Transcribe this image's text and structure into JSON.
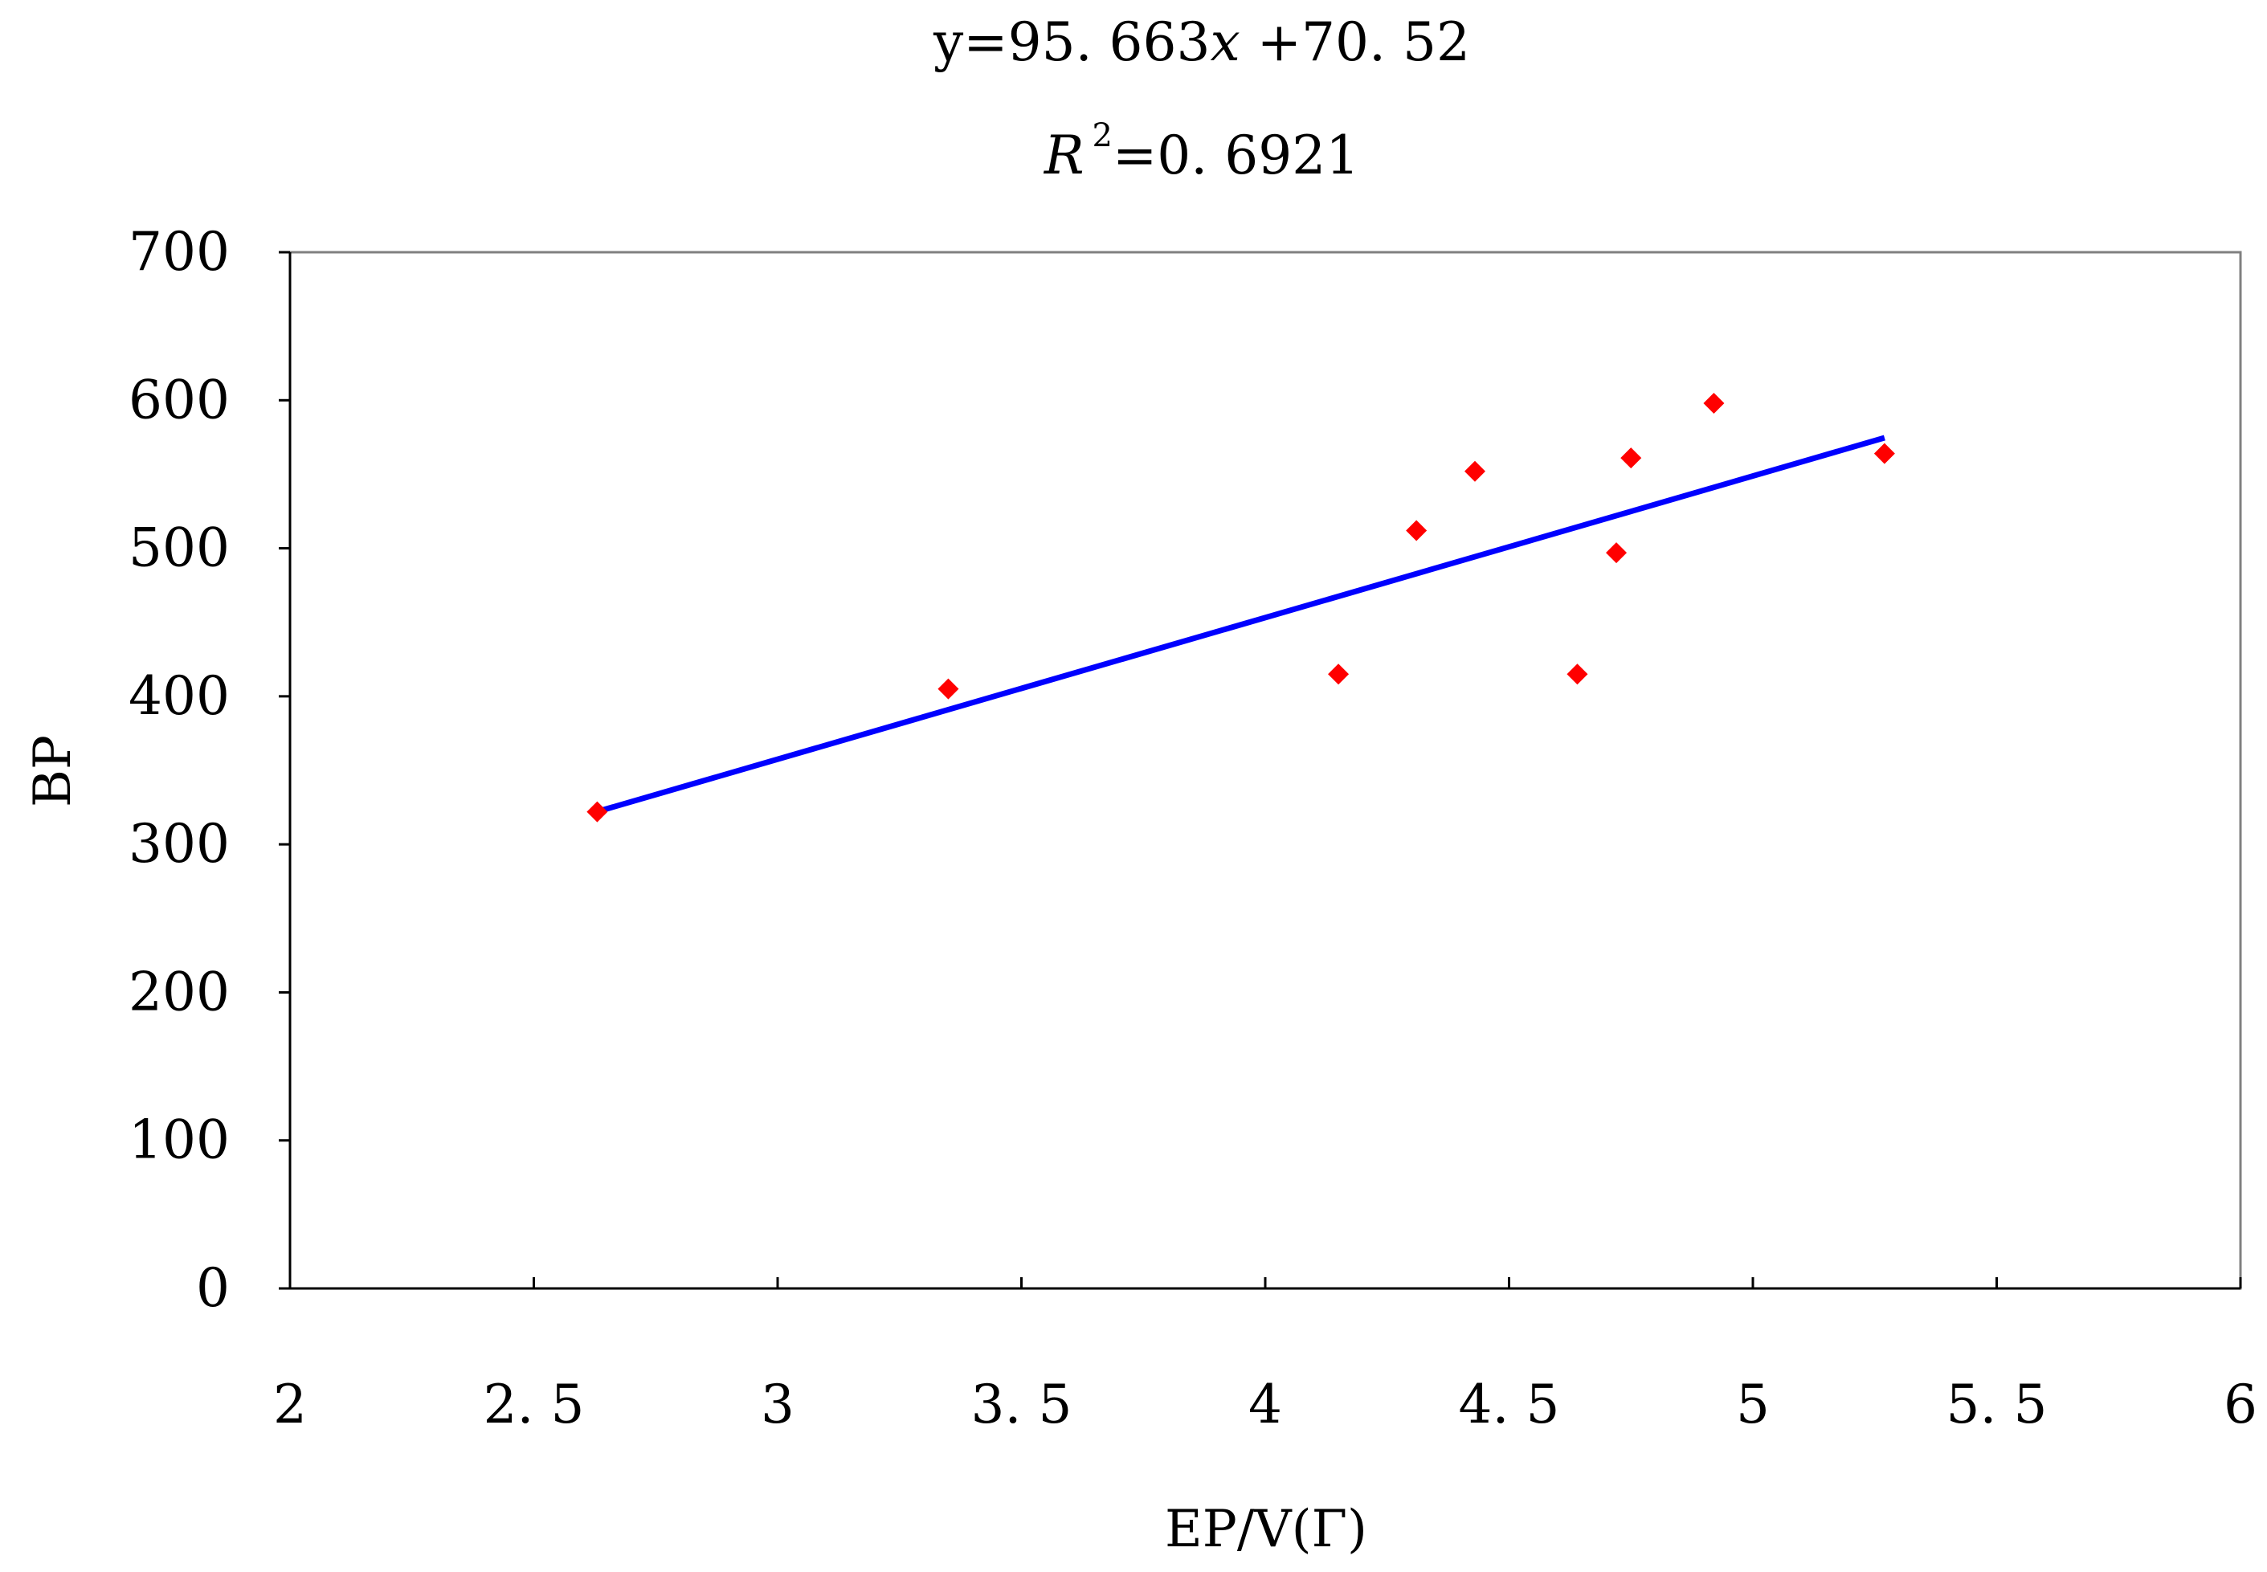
{
  "chart_data": {
    "type": "scatter",
    "equation": {
      "prefix": "y=95. 663",
      "var": "x",
      "suffix": " +70. 52"
    },
    "r_squared": {
      "symbol": "R",
      "exponent": "2",
      "value": "=0. 6921"
    },
    "xlabel": "EP/V(Γ)",
    "ylabel": "BP",
    "xlim": [
      2,
      6
    ],
    "ylim": [
      0,
      700
    ],
    "x_ticks": [
      {
        "value": 2,
        "label": "2"
      },
      {
        "value": 2.5,
        "label": "2. 5"
      },
      {
        "value": 3,
        "label": "3"
      },
      {
        "value": 3.5,
        "label": "3. 5"
      },
      {
        "value": 4,
        "label": "4"
      },
      {
        "value": 4.5,
        "label": "4. 5"
      },
      {
        "value": 5,
        "label": "5"
      },
      {
        "value": 5.5,
        "label": "5. 5"
      },
      {
        "value": 6,
        "label": "6"
      }
    ],
    "y_ticks": [
      {
        "value": 0,
        "label": "0"
      },
      {
        "value": 100,
        "label": "100"
      },
      {
        "value": 200,
        "label": "200"
      },
      {
        "value": 300,
        "label": "300"
      },
      {
        "value": 400,
        "label": "400"
      },
      {
        "value": 500,
        "label": "500"
      },
      {
        "value": 600,
        "label": "600"
      },
      {
        "value": 700,
        "label": "700"
      }
    ],
    "grid": false,
    "points": [
      {
        "x": 2.63,
        "y": 322
      },
      {
        "x": 3.35,
        "y": 405
      },
      {
        "x": 4.15,
        "y": 415
      },
      {
        "x": 4.31,
        "y": 512
      },
      {
        "x": 4.43,
        "y": 552
      },
      {
        "x": 4.64,
        "y": 415
      },
      {
        "x": 4.72,
        "y": 497
      },
      {
        "x": 4.75,
        "y": 561
      },
      {
        "x": 4.92,
        "y": 598
      },
      {
        "x": 5.27,
        "y": 564
      }
    ],
    "trendline": {
      "slope": 95.663,
      "intercept": 70.52,
      "x_start": 2.63,
      "x_end": 5.27
    },
    "colors": {
      "points": "#ff0000",
      "trendline": "#0000ff",
      "axes": "#000000",
      "frame": "#808080"
    }
  }
}
